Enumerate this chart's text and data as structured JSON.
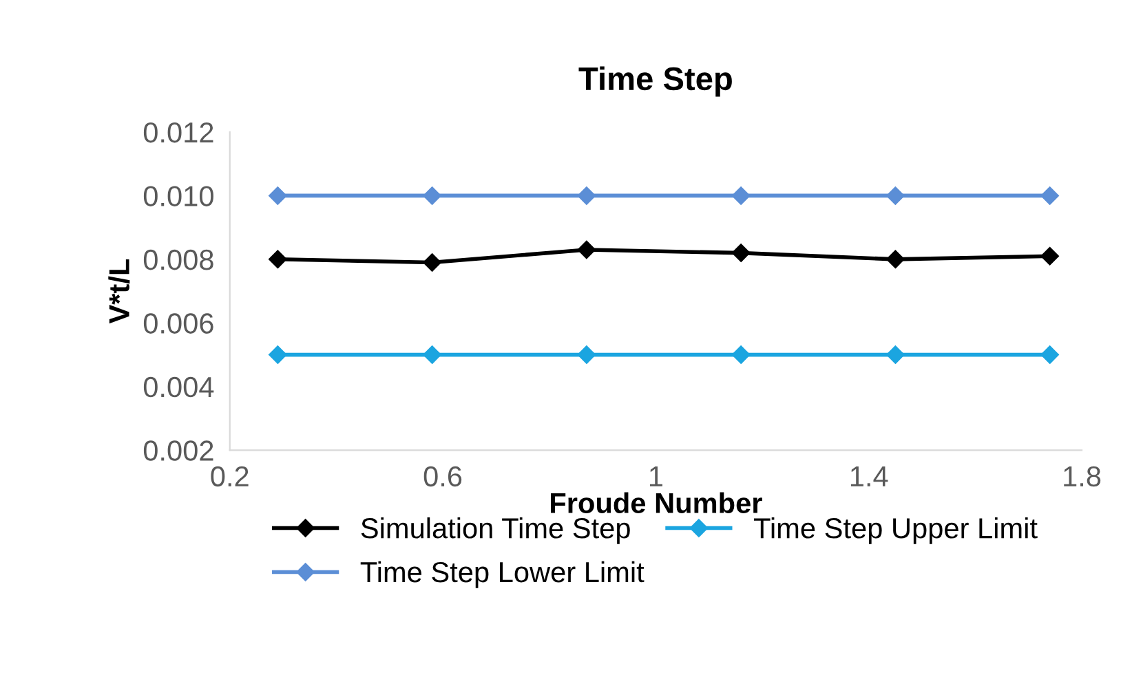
{
  "chart_data": {
    "type": "line",
    "title": "Time Step",
    "xlabel": "Froude Number",
    "ylabel": "V*t/L",
    "x": [
      0.29,
      0.58,
      0.87,
      1.16,
      1.45,
      1.74
    ],
    "series": [
      {
        "name": "Simulation Time Step",
        "color": "#000000",
        "values": [
          0.008,
          0.0079,
          0.0083,
          0.0082,
          0.008,
          0.0081
        ]
      },
      {
        "name": "Time Step Lower Limit",
        "color": "#5b8ed6",
        "values": [
          0.01,
          0.01,
          0.01,
          0.01,
          0.01,
          0.01
        ]
      },
      {
        "name": "Time Step Upper Limit",
        "color": "#1ba5e0",
        "values": [
          0.005,
          0.005,
          0.005,
          0.005,
          0.005,
          0.005
        ]
      }
    ],
    "xlim": [
      0.2,
      1.8
    ],
    "xticks": [
      0.2,
      0.6,
      1,
      1.4,
      1.8
    ],
    "ylim": [
      0.002,
      0.012
    ],
    "yticks": [
      {
        "value": 0.002,
        "label": "0.002"
      },
      {
        "value": 0.004,
        "label": "0.004"
      },
      {
        "value": 0.006,
        "label": "0.006"
      },
      {
        "value": 0.008,
        "label": "0.008"
      },
      {
        "value": 0.01,
        "label": "0.010"
      },
      {
        "value": 0.012,
        "label": "0.012"
      }
    ],
    "grid": false,
    "legend": "bottom",
    "marker": "diamond",
    "line_style": "solid"
  }
}
